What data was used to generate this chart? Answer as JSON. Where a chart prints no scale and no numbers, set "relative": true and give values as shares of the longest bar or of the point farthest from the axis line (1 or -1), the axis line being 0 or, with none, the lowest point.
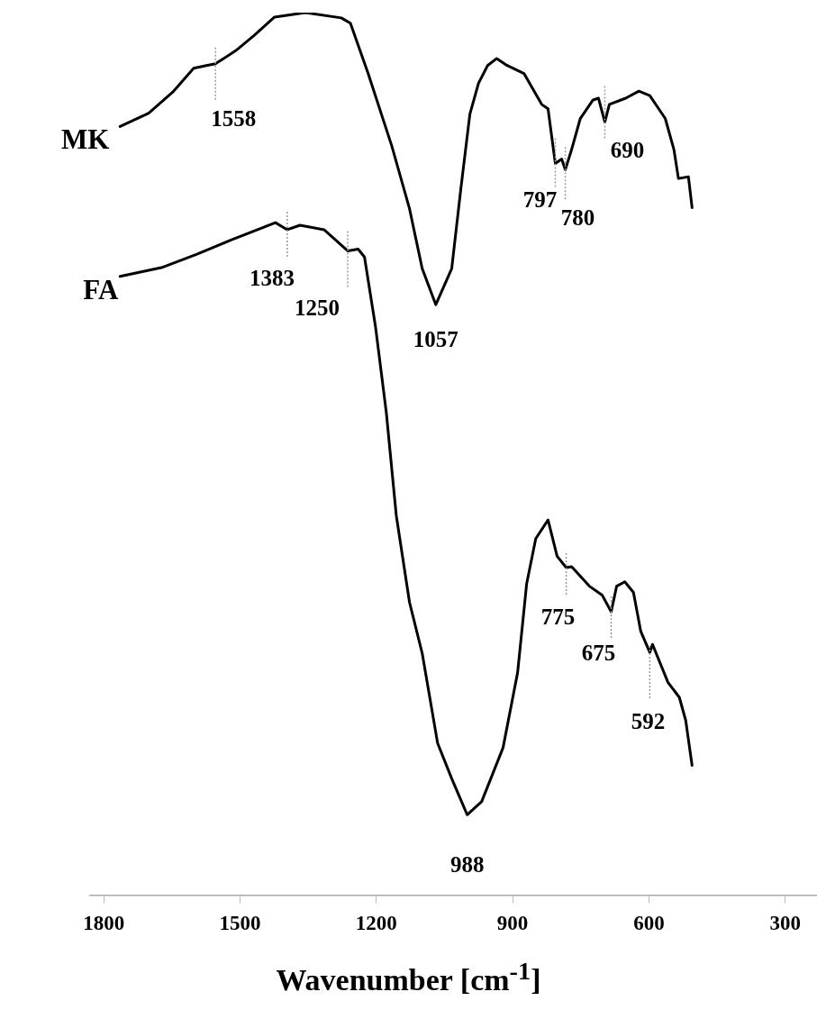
{
  "chart_data": {
    "type": "line",
    "relative": true,
    "xlabel": "Wavenumber [cm$^{-1}$]",
    "xlim": [
      1830,
      230
    ],
    "xticks": [
      1800,
      1500,
      1200,
      900,
      600,
      300
    ],
    "grid": false,
    "legend": false,
    "tick_labels": "x",
    "marker": "none",
    "line_style": "solid",
    "series": [
      {
        "name": "MK",
        "color": "#000000",
        "x": [
          1764,
          1701,
          1648,
          1602,
          1574,
          1554,
          1509,
          1469,
          1424,
          1356,
          1277,
          1257,
          1218,
          1166,
          1127,
          1099,
          1069,
          1034,
          1014,
          994,
          975,
          955,
          935,
          915,
          875,
          836,
          822,
          806,
          792,
          784,
          770,
          751,
          723,
          711,
          697,
          687,
          651,
          622,
          598,
          564,
          545,
          535,
          513,
          505
        ],
        "values": [
          0.871,
          0.886,
          0.91,
          0.937,
          0.94,
          0.942,
          0.957,
          0.974,
          0.995,
          1,
          0.994,
          0.988,
          0.931,
          0.849,
          0.778,
          0.71,
          0.669,
          0.71,
          0.8,
          0.885,
          0.92,
          0.94,
          0.948,
          0.941,
          0.931,
          0.896,
          0.891,
          0.829,
          0.834,
          0.822,
          0.845,
          0.88,
          0.901,
          0.903,
          0.876,
          0.896,
          0.903,
          0.911,
          0.906,
          0.88,
          0.845,
          0.812,
          0.814,
          0.779
        ]
      },
      {
        "name": "FA",
        "color": "#000000",
        "x": [
          1764,
          1673,
          1596,
          1521,
          1422,
          1396,
          1368,
          1315,
          1263,
          1240,
          1226,
          1202,
          1178,
          1156,
          1127,
          1099,
          1065,
          1034,
          1000,
          968,
          921,
          889,
          869,
          849,
          822,
          802,
          782,
          770,
          731,
          703,
          683,
          671,
          653,
          634,
          618,
          598,
          592,
          558,
          533,
          519,
          505
        ],
        "values": [
          0.701,
          0.711,
          0.726,
          0.742,
          0.762,
          0.754,
          0.759,
          0.754,
          0.73,
          0.732,
          0.723,
          0.645,
          0.547,
          0.43,
          0.332,
          0.274,
          0.172,
          0.132,
          0.091,
          0.106,
          0.167,
          0.252,
          0.353,
          0.404,
          0.425,
          0.384,
          0.371,
          0.372,
          0.35,
          0.34,
          0.321,
          0.35,
          0.355,
          0.343,
          0.299,
          0.275,
          0.284,
          0.241,
          0.224,
          0.198,
          0.147
        ]
      }
    ],
    "annotations": [
      {
        "text": "1558",
        "x": 1554,
        "y": 0.942
      },
      {
        "text": "797",
        "x": 806,
        "y": 0.829
      },
      {
        "text": "780",
        "x": 784,
        "y": 0.822
      },
      {
        "text": "690",
        "x": 697,
        "y": 0.876
      },
      {
        "text": "1057",
        "x": 1069,
        "y": 0.669
      },
      {
        "text": "1383",
        "x": 1396,
        "y": 0.754
      },
      {
        "text": "1250",
        "x": 1263,
        "y": 0.73
      },
      {
        "text": "775",
        "x": 782,
        "y": 0.371
      },
      {
        "text": "675",
        "x": 683,
        "y": 0.321
      },
      {
        "text": "592",
        "x": 598,
        "y": 0.275
      },
      {
        "text": "988",
        "x": 1000,
        "y": 0.091
      }
    ]
  }
}
